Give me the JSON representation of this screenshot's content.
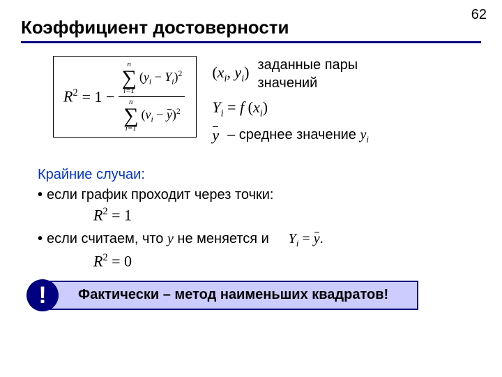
{
  "page_number": "62",
  "title": "Коэффициент достоверности",
  "colors": {
    "rule": "#000080",
    "section_label": "#0033cc",
    "callout_bg": "#ccccff",
    "callout_border": "#000080",
    "bang_bg": "#000080",
    "text": "#000000",
    "bg": "#ffffff"
  },
  "formula": {
    "lhs_var": "R",
    "lhs_sup": "2",
    "eq": " = 1 − ",
    "num_sum_upper": "n",
    "num_sum_lower": "i=1",
    "num_term_open": "(",
    "num_term_y": "y",
    "num_term_y_sub": "i",
    "num_term_minus": " − ",
    "num_term_capY": "Y",
    "num_term_capY_sub": "i",
    "num_term_close": ")",
    "num_sq": "2",
    "den_sum_upper": "n",
    "den_sum_lower": "i=1",
    "den_term_open": "(",
    "den_term_y": "v",
    "den_term_y_sub": "i",
    "den_term_minus": " − ",
    "den_term_ybar": "y",
    "den_term_close": ")",
    "den_sq": "2"
  },
  "defs": {
    "pair": {
      "open": "(",
      "x": "x",
      "x_sub": "i",
      "comma": ", ",
      "y": "y",
      "y_sub": "i",
      "close": ")",
      "label_line1": "заданные пары",
      "label_line2": "значений"
    },
    "func": {
      "capY": "Y",
      "capY_sub": "i",
      "eq": " = ",
      "f": "f",
      "open": " (",
      "x": "x",
      "x_sub": "i",
      "close": ")"
    },
    "mean": {
      "ybar": "y",
      "dash": "– ",
      "label": "среднее значение ",
      "y": "y",
      "y_sub": "i"
    }
  },
  "section_label": "Крайние случаи:",
  "bullet1": {
    "text": "если график проходит через точки:",
    "eq_lhs": "R",
    "eq_sup": "2",
    "eq_rhs": " = 1"
  },
  "bullet2": {
    "text_a": "если считаем, что ",
    "y": "y",
    "text_b": " не меняется и",
    "inline_capY": "Y",
    "inline_capY_sub": "i",
    "inline_eq": " = ",
    "inline_ybar": "y",
    "inline_dot": ".",
    "eq_lhs": "R",
    "eq_sup": "2",
    "eq_rhs": " = 0"
  },
  "callout": {
    "bang": "!",
    "text": "Фактически – метод наименьших квадратов!"
  }
}
